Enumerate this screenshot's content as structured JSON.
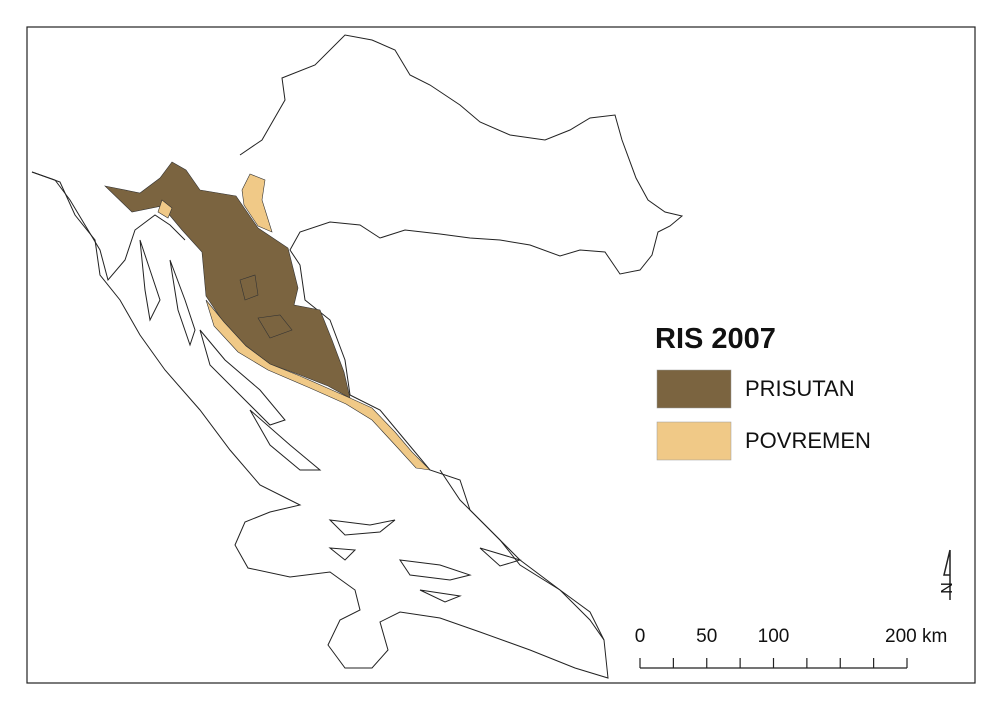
{
  "legend": {
    "title": "RIS 2007",
    "items": [
      {
        "label": "PRISUTAN",
        "color": "#7b6440"
      },
      {
        "label": "POVREMEN",
        "color": "#f0c987"
      }
    ]
  },
  "scale_bar": {
    "labels": [
      "0",
      "50",
      "100",
      "200 km"
    ]
  },
  "north_arrow": "N"
}
